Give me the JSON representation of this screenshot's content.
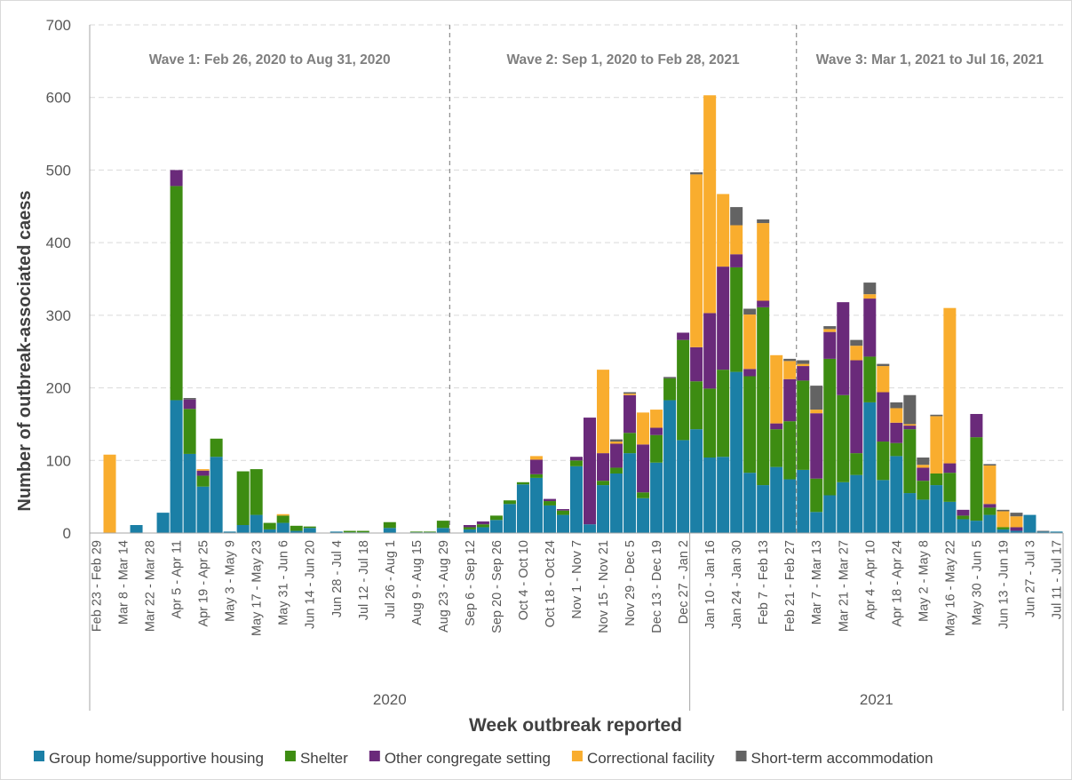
{
  "chart_data": {
    "type": "stacked_bar",
    "x_title": "Week outbreak reported",
    "y_title": "Number of outbreak-associated caess",
    "categories": [
      "Feb 23 - Feb 29",
      null,
      "Mar 8 - Mar 14",
      null,
      "Mar 22 - Mar 28",
      null,
      "Apr 5 - Apr 11",
      null,
      "Apr 19 - Apr 25",
      null,
      "May 3 - May 9",
      null,
      "May 17 - May 23",
      null,
      "May 31 - Jun 6",
      null,
      "Jun 14 - Jun 20",
      null,
      "Jun 28 - Jul 4",
      null,
      "Jul 12 - Jul 18",
      null,
      "Jul 26 - Aug 1",
      null,
      "Aug 9 - Aug 15",
      null,
      "Aug 23 - Aug 29",
      null,
      "Sep 6 - Sep 12",
      null,
      "Sep 20 - Sep 26",
      null,
      "Oct 4 - Oct 10",
      null,
      "Oct 18 - Oct 24",
      null,
      "Nov 1 - Nov 7",
      null,
      "Nov 15 - Nov 21",
      null,
      "Nov 29 - Dec 5",
      null,
      "Dec 13 - Dec 19",
      null,
      "Dec 27 - Jan 2",
      null,
      "Jan 10 - Jan 16",
      null,
      "Jan 24 - Jan 30",
      null,
      "Feb 7 - Feb 13",
      null,
      "Feb 21 - Feb 27",
      null,
      "Mar 7 - Mar 13",
      null,
      "Mar 21 - Mar 27",
      null,
      "Apr 4 - Apr 10",
      null,
      "Apr 18 - Apr 24",
      null,
      "May 2 - May 8",
      null,
      "May 16 - May 22",
      null,
      "May 30 - Jun 5",
      null,
      "Jun 13 - Jun 19",
      null,
      "Jun 27 - Jul 3",
      null,
      "Jul 11 - Jul 17"
    ],
    "groups": [
      {
        "label": "2020",
        "count": 45
      },
      {
        "label": "2021",
        "count": 28
      }
    ],
    "waves": [
      {
        "label": "Wave 1: Feb 26, 2020 to Aug 31, 2020",
        "count": 27
      },
      {
        "label": "Wave 2: Sep 1, 2020 to Feb 28, 2021",
        "count": 26
      },
      {
        "label": "Wave 3: Mar 1, 2021 to Jul 16, 2021",
        "count": 20
      }
    ],
    "series": [
      {
        "name": "Group home/supportive housing",
        "color": "#1b7fa6",
        "values": [
          0,
          0,
          0,
          11,
          0,
          28,
          183,
          109,
          64,
          105,
          2,
          11,
          25,
          5,
          14,
          3,
          7,
          0,
          2,
          1,
          1,
          0,
          7,
          0,
          1,
          1,
          7,
          0,
          5,
          8,
          18,
          40,
          67,
          76,
          38,
          25,
          92,
          12,
          66,
          82,
          110,
          48,
          97,
          183,
          128,
          143,
          104,
          105,
          222,
          83,
          66,
          91,
          74,
          87,
          29,
          52,
          70,
          80,
          180,
          73,
          106,
          55,
          46,
          66,
          43,
          19,
          17,
          25,
          5,
          3,
          25,
          2,
          2
        ]
      },
      {
        "name": "Shelter",
        "color": "#3d8c12",
        "values": [
          0,
          0,
          0,
          0,
          0,
          0,
          295,
          62,
          15,
          25,
          0,
          74,
          63,
          9,
          10,
          7,
          2,
          0,
          0,
          2,
          2,
          0,
          8,
          0,
          1,
          1,
          10,
          0,
          3,
          4,
          6,
          5,
          3,
          5,
          6,
          6,
          8,
          0,
          6,
          8,
          28,
          8,
          38,
          30,
          138,
          66,
          95,
          120,
          144,
          133,
          245,
          52,
          80,
          123,
          46,
          188,
          120,
          30,
          63,
          53,
          18,
          88,
          26,
          16,
          40,
          5,
          115,
          10,
          3,
          0,
          0,
          0,
          0
        ]
      },
      {
        "name": "Other congregate setting",
        "color": "#6a2a7a",
        "values": [
          0,
          0,
          0,
          0,
          0,
          0,
          22,
          13,
          7,
          0,
          0,
          0,
          0,
          0,
          0,
          0,
          0,
          0,
          0,
          0,
          0,
          0,
          0,
          0,
          0,
          0,
          0,
          0,
          3,
          4,
          0,
          0,
          0,
          20,
          3,
          2,
          5,
          147,
          38,
          33,
          52,
          66,
          10,
          0,
          10,
          47,
          104,
          142,
          18,
          10,
          9,
          8,
          58,
          20,
          90,
          37,
          128,
          128,
          80,
          68,
          28,
          5,
          18,
          0,
          13,
          8,
          32,
          5,
          0,
          5,
          0,
          0,
          0
        ]
      },
      {
        "name": "Correctional facility",
        "color": "#f9ad2e",
        "values": [
          0,
          108,
          0,
          0,
          0,
          0,
          0,
          0,
          2,
          0,
          0,
          0,
          0,
          0,
          2,
          0,
          0,
          0,
          0,
          0,
          0,
          0,
          0,
          0,
          0,
          0,
          0,
          0,
          0,
          0,
          0,
          0,
          0,
          5,
          0,
          0,
          0,
          0,
          115,
          3,
          2,
          44,
          25,
          0,
          0,
          238,
          300,
          100,
          40,
          75,
          107,
          94,
          25,
          3,
          5,
          4,
          0,
          20,
          6,
          36,
          20,
          2,
          4,
          79,
          214,
          0,
          0,
          53,
          22,
          15,
          0,
          0,
          0
        ]
      },
      {
        "name": "Short-term accommodation",
        "color": "#636363",
        "values": [
          0,
          0,
          0,
          0,
          0,
          0,
          0,
          2,
          0,
          0,
          0,
          0,
          0,
          0,
          0,
          0,
          0,
          0,
          0,
          0,
          0,
          0,
          0,
          0,
          0,
          0,
          0,
          0,
          0,
          0,
          0,
          0,
          0,
          0,
          0,
          0,
          0,
          0,
          0,
          3,
          2,
          0,
          0,
          2,
          0,
          3,
          0,
          0,
          25,
          8,
          5,
          0,
          3,
          5,
          33,
          4,
          0,
          8,
          16,
          3,
          8,
          40,
          10,
          2,
          0,
          0,
          0,
          2,
          2,
          5,
          0,
          1,
          0
        ]
      }
    ],
    "ylim": [
      0,
      700
    ],
    "yticks": [
      0,
      100,
      200,
      300,
      400,
      500,
      600,
      700
    ],
    "grid": true
  }
}
